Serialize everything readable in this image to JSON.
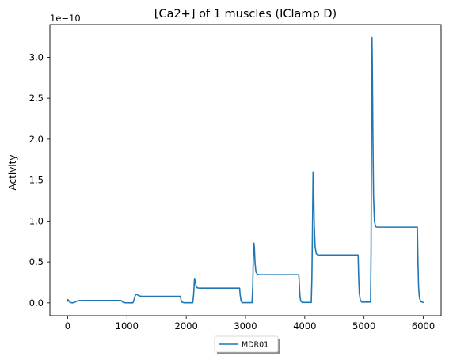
{
  "chart_data": {
    "type": "line",
    "title": "[Ca2+] of 1 muscles (IClamp D)",
    "xlabel": "",
    "ylabel": "Activity",
    "y_offset_text": "1e−10",
    "xlim": [
      -300,
      6300
    ],
    "ylim": [
      -0.156,
      3.4
    ],
    "x_ticks": [
      0,
      1000,
      2000,
      3000,
      4000,
      5000,
      6000
    ],
    "x_tick_labels": [
      "0",
      "1000",
      "2000",
      "3000",
      "4000",
      "5000",
      "6000"
    ],
    "y_ticks": [
      0.0,
      0.5,
      1.0,
      1.5,
      2.0,
      2.5,
      3.0
    ],
    "y_tick_labels": [
      "0.0",
      "0.5",
      "1.0",
      "1.5",
      "2.0",
      "2.5",
      "3.0"
    ],
    "grid": false,
    "legend_position": "below plot, centered",
    "series": [
      {
        "name": "MDR01",
        "color": "#1f77b4",
        "points": [
          [
            0,
            0.02
          ],
          [
            5,
            0.04
          ],
          [
            15,
            0.03
          ],
          [
            40,
            0.005
          ],
          [
            80,
            0.0
          ],
          [
            120,
            0.008
          ],
          [
            150,
            0.02
          ],
          [
            180,
            0.028
          ],
          [
            300,
            0.03
          ],
          [
            600,
            0.03
          ],
          [
            900,
            0.03
          ],
          [
            930,
            0.01
          ],
          [
            960,
            0.002
          ],
          [
            1100,
            0.0
          ],
          [
            1120,
            0.04
          ],
          [
            1140,
            0.09
          ],
          [
            1155,
            0.105
          ],
          [
            1175,
            0.1
          ],
          [
            1210,
            0.085
          ],
          [
            1250,
            0.08
          ],
          [
            1500,
            0.08
          ],
          [
            1900,
            0.08
          ],
          [
            1915,
            0.03
          ],
          [
            1930,
            0.008
          ],
          [
            1960,
            0.002
          ],
          [
            2110,
            0.002
          ],
          [
            2125,
            0.1
          ],
          [
            2140,
            0.3
          ],
          [
            2150,
            0.27
          ],
          [
            2165,
            0.21
          ],
          [
            2185,
            0.185
          ],
          [
            2220,
            0.18
          ],
          [
            2500,
            0.18
          ],
          [
            2900,
            0.18
          ],
          [
            2910,
            0.1
          ],
          [
            2925,
            0.02
          ],
          [
            2950,
            0.003
          ],
          [
            3110,
            0.003
          ],
          [
            3122,
            0.2
          ],
          [
            3132,
            0.55
          ],
          [
            3142,
            0.73
          ],
          [
            3150,
            0.68
          ],
          [
            3160,
            0.5
          ],
          [
            3175,
            0.38
          ],
          [
            3200,
            0.35
          ],
          [
            3230,
            0.345
          ],
          [
            3500,
            0.345
          ],
          [
            3900,
            0.345
          ],
          [
            3910,
            0.2
          ],
          [
            3920,
            0.07
          ],
          [
            3935,
            0.02
          ],
          [
            3960,
            0.005
          ],
          [
            4110,
            0.005
          ],
          [
            4120,
            0.3
          ],
          [
            4130,
            0.9
          ],
          [
            4140,
            1.6
          ],
          [
            4150,
            1.4
          ],
          [
            4160,
            0.95
          ],
          [
            4175,
            0.68
          ],
          [
            4195,
            0.6
          ],
          [
            4225,
            0.585
          ],
          [
            4500,
            0.585
          ],
          [
            4900,
            0.585
          ],
          [
            4910,
            0.3
          ],
          [
            4920,
            0.12
          ],
          [
            4935,
            0.04
          ],
          [
            4960,
            0.01
          ],
          [
            5110,
            0.01
          ],
          [
            5118,
            0.6
          ],
          [
            5126,
            2.0
          ],
          [
            5134,
            3.24
          ],
          [
            5140,
            2.9
          ],
          [
            5150,
            2.0
          ],
          [
            5160,
            1.3
          ],
          [
            5175,
            1.0
          ],
          [
            5195,
            0.93
          ],
          [
            5225,
            0.925
          ],
          [
            5500,
            0.925
          ],
          [
            5900,
            0.925
          ],
          [
            5910,
            0.5
          ],
          [
            5920,
            0.2
          ],
          [
            5935,
            0.06
          ],
          [
            5960,
            0.015
          ],
          [
            6000,
            0.005
          ]
        ]
      }
    ]
  }
}
